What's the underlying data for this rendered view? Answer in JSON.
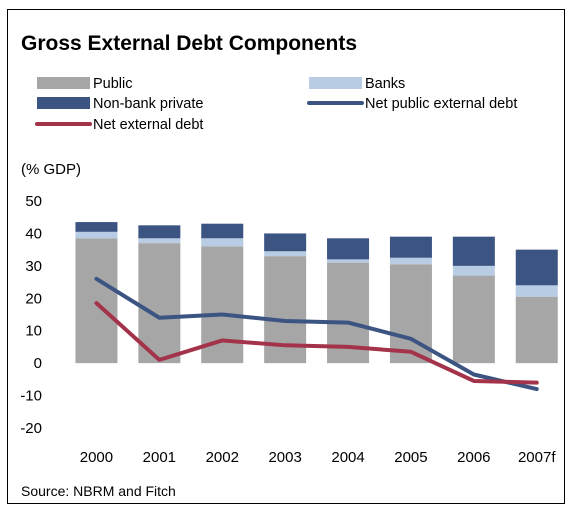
{
  "chart_data": {
    "type": "bar",
    "title": "Gross External Debt Components",
    "unit_label": "(% GDP)",
    "source": "Source: NBRM and Fitch",
    "categories": [
      "2000",
      "2001",
      "2002",
      "2003",
      "2004",
      "2005",
      "2006",
      "2007f"
    ],
    "ylim": [
      -20,
      50
    ],
    "yticks": [
      50,
      40,
      30,
      20,
      10,
      0,
      -10,
      -20
    ],
    "grid": false,
    "legend_position": "top",
    "stacked_series": [
      {
        "name": "Public",
        "color": "#a6a6a6",
        "values": [
          38.5,
          37.0,
          36.0,
          33.0,
          31.0,
          30.5,
          27.0,
          20.5
        ]
      },
      {
        "name": "Banks",
        "color": "#b8cce4",
        "values": [
          2.0,
          1.5,
          2.5,
          1.5,
          1.0,
          2.0,
          3.0,
          3.5
        ]
      },
      {
        "name": "Non-bank private",
        "color": "#3c5482",
        "values": [
          3.0,
          4.0,
          4.5,
          5.5,
          6.5,
          6.5,
          9.0,
          11.0
        ]
      }
    ],
    "line_series": [
      {
        "name": "Net public external debt",
        "color": "#3c5482",
        "values": [
          26.0,
          14.0,
          15.0,
          13.0,
          12.5,
          7.5,
          -3.5,
          -8.0
        ]
      },
      {
        "name": "Net external debt",
        "color": "#a3334a",
        "values": [
          18.5,
          1.0,
          7.0,
          5.5,
          5.0,
          3.5,
          -5.5,
          -6.0
        ]
      }
    ]
  }
}
